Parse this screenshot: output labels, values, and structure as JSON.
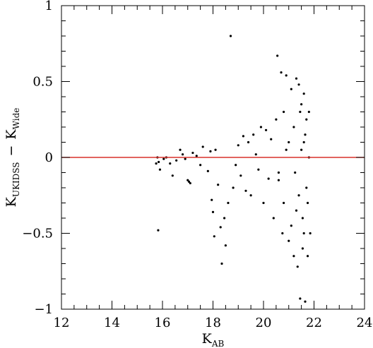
{
  "chart_data": {
    "type": "scatter",
    "xlabel": {
      "base": "K",
      "sub": "AB"
    },
    "ylabel": {
      "base1": "K",
      "sub1": "UKIDSS",
      "sep": "−",
      "base2": "K",
      "sub2": "Wide"
    },
    "xlim": [
      12,
      24
    ],
    "ylim": [
      -1,
      1
    ],
    "xticks": [
      12,
      14,
      16,
      18,
      20,
      22,
      24
    ],
    "yticks": [
      -1,
      -0.5,
      0,
      0.5,
      1
    ],
    "xtick_labels": [
      "12",
      "14",
      "16",
      "18",
      "20",
      "22",
      "24"
    ],
    "ytick_labels": [
      "−1",
      "−0.5",
      "0",
      "0.5",
      "1"
    ],
    "reference_line": {
      "y": 0,
      "color": "#d9302a"
    },
    "colors": {
      "points": "#000000",
      "axes": "#000000"
    },
    "points_note": "approximate sample of the plotted points",
    "points": [
      [
        15.83,
        -0.48
      ],
      [
        15.75,
        -0.04
      ],
      [
        15.85,
        -0.03
      ],
      [
        15.9,
        -0.08
      ],
      [
        15.8,
        0.0
      ],
      [
        16.05,
        -0.01
      ],
      [
        16.15,
        0.0
      ],
      [
        16.3,
        -0.04
      ],
      [
        16.4,
        -0.12
      ],
      [
        16.55,
        -0.02
      ],
      [
        16.7,
        0.05
      ],
      [
        16.8,
        0.02
      ],
      [
        16.9,
        -0.01
      ],
      [
        17.0,
        -0.15
      ],
      [
        17.05,
        -0.16
      ],
      [
        17.1,
        -0.17
      ],
      [
        17.2,
        0.03
      ],
      [
        17.35,
        0.01
      ],
      [
        17.5,
        -0.05
      ],
      [
        17.6,
        0.07
      ],
      [
        17.8,
        -0.09
      ],
      [
        17.9,
        0.04
      ],
      [
        17.95,
        -0.28
      ],
      [
        18.0,
        -0.36
      ],
      [
        18.05,
        -0.52
      ],
      [
        18.1,
        0.05
      ],
      [
        18.2,
        -0.18
      ],
      [
        18.3,
        -0.46
      ],
      [
        18.35,
        -0.7
      ],
      [
        18.5,
        -0.58
      ],
      [
        18.45,
        -0.4
      ],
      [
        18.6,
        -0.3
      ],
      [
        18.7,
        0.8
      ],
      [
        18.8,
        -0.2
      ],
      [
        18.9,
        -0.05
      ],
      [
        19.0,
        0.08
      ],
      [
        19.1,
        -0.12
      ],
      [
        19.2,
        0.14
      ],
      [
        19.3,
        -0.22
      ],
      [
        19.4,
        0.1
      ],
      [
        19.5,
        -0.25
      ],
      [
        19.6,
        0.15
      ],
      [
        19.7,
        0.02
      ],
      [
        19.8,
        -0.08
      ],
      [
        19.9,
        0.2
      ],
      [
        20.0,
        -0.3
      ],
      [
        20.1,
        0.18
      ],
      [
        20.2,
        -0.14
      ],
      [
        20.3,
        0.12
      ],
      [
        20.4,
        -0.4
      ],
      [
        20.5,
        0.25
      ],
      [
        20.55,
        0.67
      ],
      [
        20.6,
        -0.15
      ],
      [
        20.7,
        0.56
      ],
      [
        20.75,
        -0.5
      ],
      [
        20.8,
        0.3
      ],
      [
        20.9,
        0.54
      ],
      [
        21.0,
        -0.55
      ],
      [
        21.1,
        0.45
      ],
      [
        21.2,
        -0.65
      ],
      [
        21.3,
        0.52
      ],
      [
        21.35,
        -0.72
      ],
      [
        21.4,
        0.48
      ],
      [
        21.45,
        -0.93
      ],
      [
        21.5,
        0.35
      ],
      [
        21.55,
        -0.6
      ],
      [
        21.6,
        0.42
      ],
      [
        21.65,
        -0.95
      ],
      [
        21.7,
        0.25
      ],
      [
        21.75,
        -0.65
      ],
      [
        21.8,
        0.3
      ],
      [
        21.85,
        -0.5
      ],
      [
        21.6,
        0.1
      ],
      [
        21.7,
        -0.2
      ],
      [
        21.5,
        0.05
      ],
      [
        21.3,
        -0.35
      ],
      [
        21.2,
        0.2
      ],
      [
        21.0,
        0.1
      ],
      [
        20.8,
        -0.3
      ],
      [
        20.6,
        -0.1
      ],
      [
        21.4,
        -0.25
      ],
      [
        21.55,
        -0.4
      ],
      [
        21.65,
        0.15
      ],
      [
        21.75,
        -0.3
      ],
      [
        21.8,
        0.0
      ],
      [
        21.1,
        -0.45
      ],
      [
        20.9,
        0.05
      ],
      [
        21.25,
        -0.1
      ],
      [
        21.45,
        0.3
      ],
      [
        21.6,
        -0.5
      ]
    ]
  }
}
